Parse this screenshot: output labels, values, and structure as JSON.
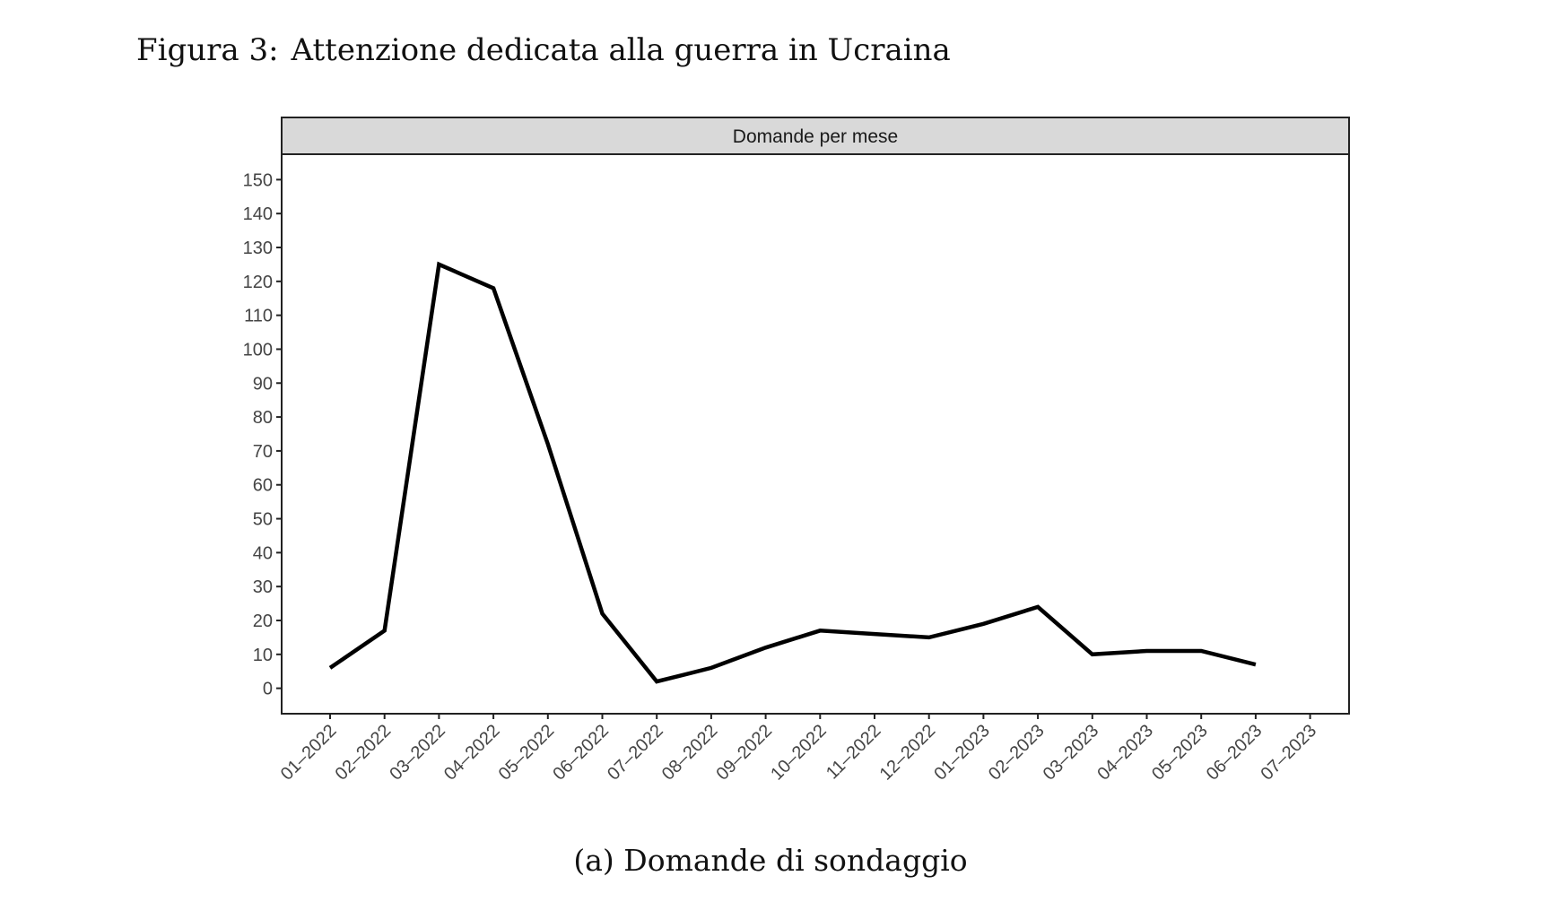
{
  "figure": {
    "number": "Figura 3:",
    "title": "Attenzione dedicata alla guerra in Ucraina",
    "caption": "(a) Domande di sondaggio"
  },
  "chart_data": {
    "type": "line",
    "panel_title": "Domande per mese",
    "categories": [
      "01–2022",
      "02–2022",
      "03–2022",
      "04–2022",
      "05–2022",
      "06–2022",
      "07–2022",
      "08–2022",
      "09–2022",
      "10–2022",
      "11–2022",
      "12–2022",
      "01–2023",
      "02–2023",
      "03–2023",
      "04–2023",
      "05–2023",
      "06–2023",
      "07–2023"
    ],
    "series": [
      {
        "values": [
          6,
          17,
          125,
          118,
          72,
          22,
          2,
          6,
          12,
          17,
          16,
          15,
          19,
          24,
          10,
          11,
          11,
          7,
          null
        ]
      }
    ],
    "yticks": [
      0,
      10,
      20,
      30,
      40,
      50,
      60,
      70,
      80,
      90,
      100,
      110,
      120,
      130,
      140,
      150
    ],
    "ylim": [
      -7.5,
      157.5
    ],
    "xlabel": "",
    "ylabel": "",
    "grid": false,
    "line_color": "#000000",
    "strip_color": "#d9d9d9"
  }
}
